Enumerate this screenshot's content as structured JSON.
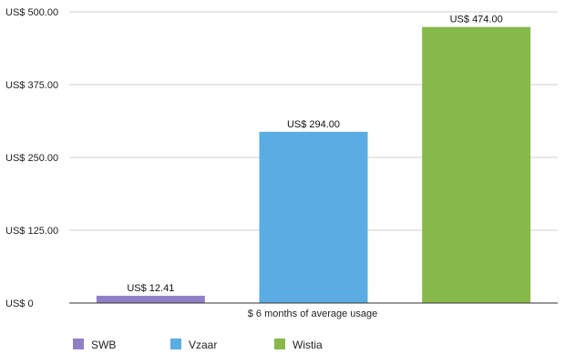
{
  "chart_data": {
    "type": "bar",
    "categories": [
      "SWB",
      "Vzaar",
      "Wistia"
    ],
    "values": [
      12.41,
      294.0,
      474.0
    ],
    "value_labels": [
      "US$ 12.41",
      "US$ 294.00",
      "US$ 474.00"
    ],
    "colors": [
      "#8f7fc6",
      "#5aace3",
      "#86b94a"
    ],
    "title": "",
    "xlabel": "$ 6 months of average usage",
    "ylabel": "",
    "ylim": [
      0,
      500
    ],
    "yticks": [
      0,
      125,
      250,
      375,
      500
    ],
    "ytick_labels": [
      "US$ 0",
      "US$ 125.00",
      "US$ 250.00",
      "US$ 375.00",
      "US$ 500.00"
    ],
    "grid": true,
    "legend_position": "bottom"
  }
}
